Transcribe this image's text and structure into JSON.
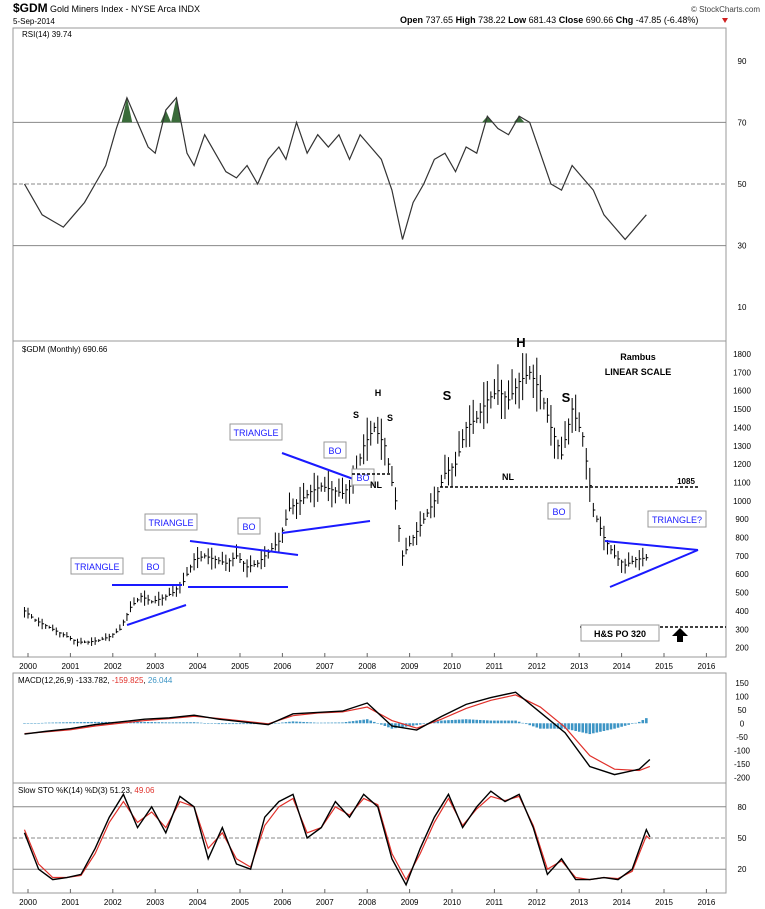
{
  "header": {
    "symbol": "$GDM",
    "name": "Gold Miners Index - NYSE Arca INDX",
    "date": "5-Sep-2014",
    "ohlc": {
      "open": "737.65",
      "high": "738.22",
      "low": "681.43",
      "close": "690.66",
      "chg": "-47.85 (-6.48%)"
    },
    "open_label": "Open",
    "high_label": "High",
    "low_label": "Low",
    "close_label": "Close",
    "chg_label": "Chg",
    "credit": "© StockCharts.com"
  },
  "colors": {
    "price": "#000000",
    "annotation": "#1a1aff",
    "macd_signal": "#e0302a",
    "histogram": "#3d95c5",
    "overbought_fill": "#3a6b3a",
    "ref_line": "#888888"
  },
  "chart_data": [
    {
      "type": "line",
      "panel": "rsi",
      "legend": "RSI(14) 39.74",
      "ylim": [
        0,
        100
      ],
      "yticks": [
        10,
        30,
        50,
        70,
        90
      ],
      "ref_lines": [
        30,
        50,
        70
      ],
      "series": [
        {
          "name": "RSI(14)",
          "x": [
            "1999-12",
            "2000-02",
            "2000-05",
            "2000-08",
            "2000-11",
            "2001-02",
            "2001-05",
            "2001-08",
            "2001-11",
            "2002-02",
            "2002-05",
            "2002-08",
            "2002-11",
            "2003-01",
            "2003-04",
            "2003-07",
            "2003-10",
            "2003-12",
            "2004-03",
            "2004-06",
            "2004-09",
            "2004-12",
            "2005-03",
            "2005-06",
            "2005-09",
            "2005-12",
            "2006-02",
            "2006-05",
            "2006-08",
            "2006-11",
            "2007-02",
            "2007-05",
            "2007-08",
            "2007-11",
            "2008-02",
            "2008-05",
            "2008-08",
            "2008-11",
            "2009-02",
            "2009-05",
            "2009-08",
            "2009-11",
            "2010-02",
            "2010-05",
            "2010-08",
            "2010-11",
            "2011-02",
            "2011-05",
            "2011-08",
            "2011-11",
            "2012-02",
            "2012-05",
            "2012-08",
            "2012-11",
            "2013-02",
            "2013-05",
            "2013-08",
            "2013-11",
            "2014-02",
            "2014-05",
            "2014-08"
          ],
          "values": [
            50,
            46,
            40,
            38,
            36,
            40,
            44,
            50,
            56,
            68,
            78,
            70,
            62,
            60,
            74,
            78,
            60,
            56,
            66,
            60,
            54,
            52,
            56,
            50,
            58,
            62,
            58,
            70,
            60,
            66,
            62,
            66,
            58,
            66,
            62,
            58,
            48,
            32,
            44,
            50,
            58,
            60,
            54,
            62,
            60,
            72,
            68,
            66,
            72,
            70,
            60,
            50,
            48,
            56,
            52,
            48,
            40,
            36,
            32,
            36,
            40
          ]
        }
      ]
    },
    {
      "type": "candlestick",
      "panel": "price",
      "legend": "$GDM (Monthly) 690.66",
      "scale": "linear",
      "ylim": [
        160,
        1860
      ],
      "yticks": [
        200,
        300,
        400,
        500,
        600,
        700,
        800,
        900,
        1000,
        1100,
        1200,
        1300,
        1400,
        1500,
        1600,
        1700,
        1800
      ],
      "x_ticks": [
        "2000",
        "2001",
        "2002",
        "2003",
        "2004",
        "2005",
        "2006",
        "2007",
        "2008",
        "2009",
        "2010",
        "2011",
        "2012",
        "2013",
        "2014",
        "2015",
        "2016"
      ],
      "series": [
        {
          "name": "$GDM",
          "x": [
            "1999-12",
            "2000-03",
            "2000-06",
            "2000-09",
            "2000-12",
            "2001-03",
            "2001-06",
            "2001-09",
            "2001-12",
            "2002-03",
            "2002-06",
            "2002-09",
            "2002-12",
            "2003-03",
            "2003-06",
            "2003-09",
            "2003-12",
            "2004-03",
            "2004-06",
            "2004-09",
            "2004-12",
            "2005-03",
            "2005-06",
            "2005-09",
            "2005-12",
            "2006-03",
            "2006-06",
            "2006-09",
            "2006-12",
            "2007-03",
            "2007-06",
            "2007-09",
            "2007-12",
            "2008-03",
            "2008-06",
            "2008-09",
            "2008-11",
            "2009-02",
            "2009-05",
            "2009-08",
            "2009-11",
            "2010-02",
            "2010-05",
            "2010-08",
            "2010-11",
            "2011-02",
            "2011-05",
            "2011-08",
            "2011-11",
            "2012-02",
            "2012-05",
            "2012-08",
            "2012-11",
            "2013-02",
            "2013-05",
            "2013-08",
            "2013-11",
            "2014-02",
            "2014-05",
            "2014-08"
          ],
          "values": [
            400,
            350,
            320,
            290,
            260,
            230,
            230,
            240,
            260,
            300,
            420,
            480,
            450,
            470,
            500,
            560,
            680,
            700,
            680,
            660,
            700,
            640,
            660,
            720,
            780,
            960,
            1000,
            1050,
            1080,
            1060,
            1040,
            1100,
            1300,
            1400,
            1300,
            1000,
            700,
            800,
            900,
            1000,
            1150,
            1200,
            1400,
            1450,
            1550,
            1600,
            1550,
            1650,
            1700,
            1600,
            1400,
            1250,
            1500,
            1350,
            950,
            800,
            700,
            650,
            680,
            690
          ]
        }
      ],
      "annotations": {
        "title": "Rambus",
        "subtitle": "LINEAR SCALE",
        "head_labels": [
          "H",
          "H"
        ],
        "shoulder_labels": [
          "S",
          "S",
          "S",
          "S"
        ],
        "triangle_labels": [
          "TRIANGLE",
          "TRIANGLE",
          "TRIANGLE",
          "TRIANGLE?"
        ],
        "breakout_labels": [
          "BO",
          "BO",
          "BO",
          "BO",
          "BO"
        ],
        "neckline_labels": [
          "NL",
          "NL"
        ],
        "neckline_value": "1085",
        "target_label": "H&S PO 320",
        "target_value": 320
      }
    },
    {
      "type": "line",
      "panel": "macd",
      "legend_prefix": "MACD(12,26,9)",
      "legend_macd": "-133.782",
      "legend_signal": "-159.825",
      "legend_hist": "26.044",
      "ylim": [
        -210,
        175
      ],
      "yticks": [
        150,
        100,
        50,
        0,
        -50,
        -100,
        -150,
        -200
      ],
      "x": [
        "1999-12",
        "2000-06",
        "2001-01",
        "2001-08",
        "2002-03",
        "2002-10",
        "2003-05",
        "2003-12",
        "2004-07",
        "2005-02",
        "2005-09",
        "2006-04",
        "2006-11",
        "2007-06",
        "2008-01",
        "2008-08",
        "2009-03",
        "2009-10",
        "2010-05",
        "2010-12",
        "2011-07",
        "2012-02",
        "2012-09",
        "2013-04",
        "2013-11",
        "2014-06",
        "2014-09"
      ],
      "series": [
        {
          "name": "MACD",
          "values": [
            -40,
            -30,
            -20,
            -5,
            5,
            15,
            20,
            30,
            15,
            5,
            -5,
            35,
            40,
            45,
            75,
            -10,
            -25,
            25,
            70,
            95,
            115,
            40,
            -35,
            -160,
            -190,
            -170,
            -134
          ]
        },
        {
          "name": "Signal",
          "values": [
            -38,
            -32,
            -24,
            -10,
            0,
            10,
            17,
            26,
            18,
            8,
            -2,
            28,
            38,
            42,
            60,
            10,
            -18,
            15,
            55,
            85,
            105,
            60,
            -15,
            -120,
            -170,
            -175,
            -160
          ]
        },
        {
          "name": "Histogram",
          "values": [
            -2,
            2,
            4,
            5,
            5,
            5,
            3,
            4,
            -3,
            -3,
            -3,
            7,
            2,
            3,
            15,
            -20,
            -7,
            10,
            15,
            10,
            10,
            -20,
            -20,
            -40,
            -20,
            5,
            26
          ]
        }
      ]
    },
    {
      "type": "line",
      "panel": "stochastic",
      "legend_prefix": "Slow STO %K(14) %D(3)",
      "legend_k": "51.23",
      "legend_d": "49.06",
      "ylim": [
        0,
        100
      ],
      "yticks": [
        20,
        50,
        80
      ],
      "ref_lines": [
        20,
        50,
        80
      ],
      "x": [
        "1999-12",
        "2000-04",
        "2000-08",
        "2000-12",
        "2001-04",
        "2001-08",
        "2001-12",
        "2002-04",
        "2002-08",
        "2002-12",
        "2003-04",
        "2003-08",
        "2003-12",
        "2004-04",
        "2004-08",
        "2004-12",
        "2005-04",
        "2005-08",
        "2005-12",
        "2006-04",
        "2006-08",
        "2006-12",
        "2007-04",
        "2007-08",
        "2007-12",
        "2008-04",
        "2008-08",
        "2008-12",
        "2009-04",
        "2009-08",
        "2009-12",
        "2010-04",
        "2010-08",
        "2010-12",
        "2011-04",
        "2011-08",
        "2011-12",
        "2012-04",
        "2012-08",
        "2012-12",
        "2013-04",
        "2013-08",
        "2013-12",
        "2014-04",
        "2014-08",
        "2014-09"
      ],
      "series": [
        {
          "name": "%K",
          "values": [
            55,
            20,
            10,
            12,
            15,
            40,
            70,
            92,
            60,
            80,
            55,
            90,
            80,
            30,
            60,
            25,
            20,
            70,
            85,
            92,
            50,
            60,
            85,
            70,
            92,
            80,
            30,
            5,
            40,
            70,
            92,
            60,
            80,
            95,
            85,
            92,
            60,
            15,
            30,
            10,
            10,
            12,
            10,
            20,
            58,
            51
          ]
        },
        {
          "name": "%D",
          "values": [
            58,
            25,
            12,
            12,
            14,
            35,
            65,
            85,
            65,
            75,
            60,
            85,
            80,
            40,
            55,
            30,
            22,
            62,
            80,
            88,
            55,
            60,
            80,
            72,
            88,
            82,
            35,
            10,
            35,
            65,
            88,
            62,
            78,
            90,
            86,
            90,
            62,
            20,
            28,
            12,
            10,
            12,
            11,
            18,
            52,
            49
          ]
        }
      ]
    }
  ]
}
